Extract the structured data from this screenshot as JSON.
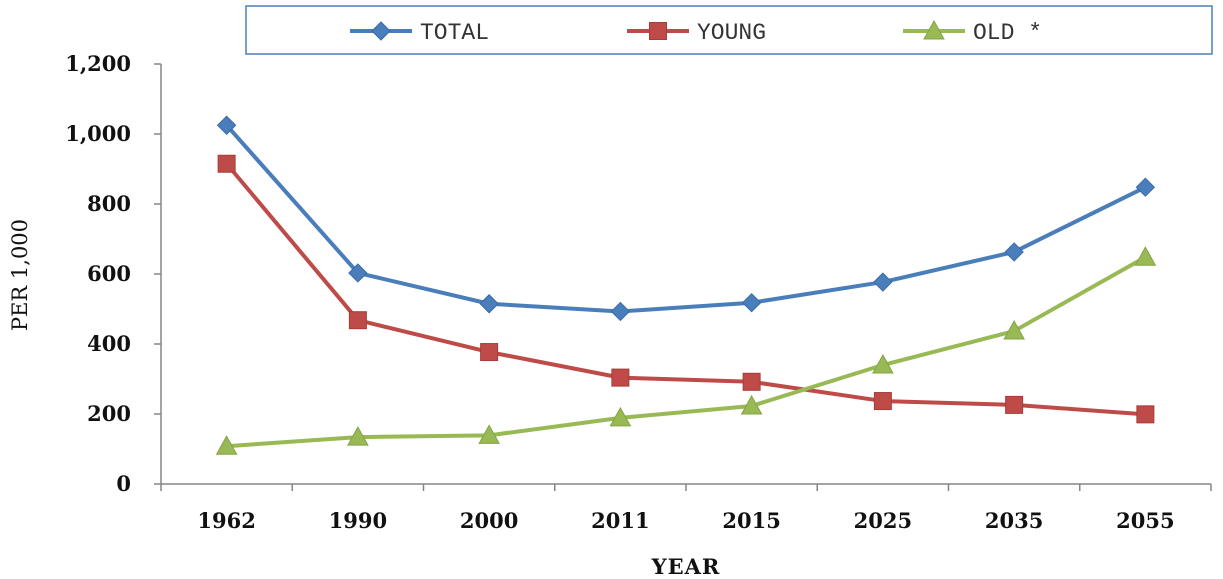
{
  "chart_data": {
    "type": "line",
    "title": "",
    "xlabel": "YEAR",
    "ylabel": "PER 1,000",
    "categories": [
      "1962",
      "1990",
      "2000",
      "2011",
      "2015",
      "2025",
      "2035",
      "2055"
    ],
    "ylim": [
      0,
      1200
    ],
    "yticks": [
      0,
      200,
      400,
      600,
      800,
      1000,
      1200
    ],
    "ytick_labels": [
      "0",
      "200",
      "400",
      "600",
      "800",
      "1,000",
      "1,200"
    ],
    "grid": false,
    "legend_position": "top",
    "series": [
      {
        "name": "TOTAL",
        "marker": "diamond",
        "color": "#4a7ebb",
        "values": [
          1025,
          603,
          515,
          493,
          518,
          577,
          663,
          848
        ]
      },
      {
        "name": "YOUNG",
        "marker": "square",
        "color": "#be4b48",
        "values": [
          915,
          468,
          377,
          304,
          292,
          237,
          226,
          199
        ]
      },
      {
        "name": "OLD *",
        "marker": "triangle",
        "color": "#98b954",
        "values": [
          108,
          134,
          139,
          189,
          223,
          340,
          437,
          648
        ]
      }
    ]
  }
}
